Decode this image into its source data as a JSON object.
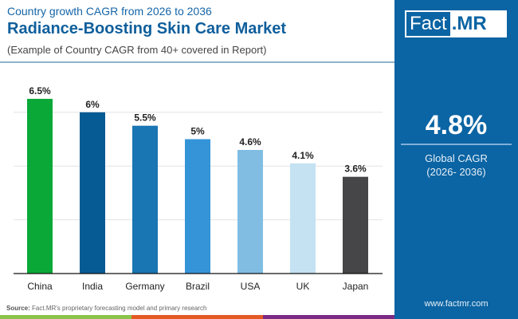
{
  "header": {
    "subtitle": "Country growth CAGR from 2026 to 2036",
    "title": "Radiance-Boosting Skin Care Market",
    "note": "(Example of Country CAGR from 40+ covered in Report)"
  },
  "logo": {
    "part1": "Fact",
    "part2": ".MR"
  },
  "global": {
    "value": "4.8%",
    "label": "Global CAGR",
    "period": "(2026- 2036)"
  },
  "footer": {
    "source_label": "Source:",
    "source_text": "Fact.MR's proprietary forecasting model and primary research",
    "url": "www.factmr.com"
  },
  "chart_data": {
    "type": "bar",
    "categories": [
      "China",
      "India",
      "Germany",
      "Brazil",
      "USA",
      "UK",
      "Japan"
    ],
    "values": [
      6.5,
      6,
      5.5,
      5,
      4.6,
      4.1,
      3.6
    ],
    "labels": [
      "6.5%",
      "6%",
      "5.5%",
      "5%",
      "4.6%",
      "4.1%",
      "3.6%"
    ],
    "colors": [
      "#0aa937",
      "#075b94",
      "#1a75b3",
      "#3594d8",
      "#81bde3",
      "#c4e2f2",
      "#464547"
    ],
    "ylim": [
      0,
      7.5
    ],
    "grid": true
  }
}
